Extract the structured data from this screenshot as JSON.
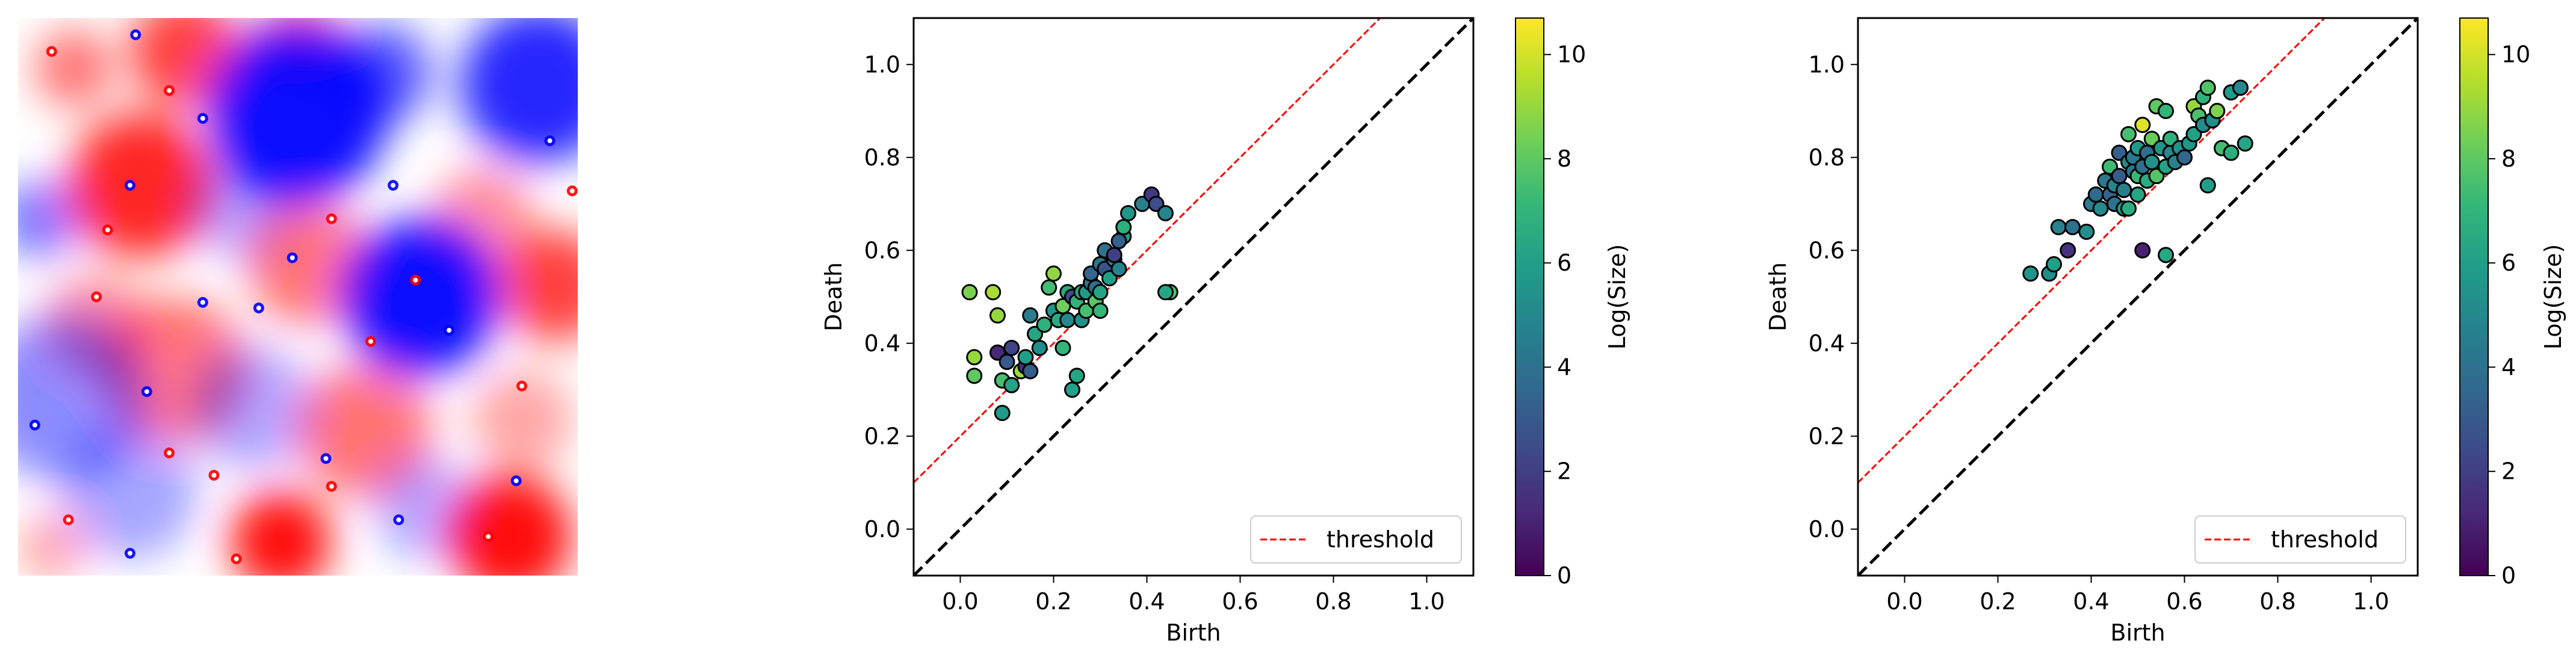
{
  "chart_data": [
    {
      "type": "heatmap",
      "title": "",
      "colormap": "bwr",
      "colors": {
        "negative": "#0000ff",
        "zero": "#ffffff",
        "positive": "#ff0000"
      },
      "blobs": [
        {
          "x": 0.1,
          "y": 0.09,
          "r": 0.07,
          "v": 0.55
        },
        {
          "x": 0.3,
          "y": 0.06,
          "r": 0.1,
          "v": 0.75
        },
        {
          "x": 0.5,
          "y": 0.04,
          "r": 0.08,
          "v": 0.55
        },
        {
          "x": 0.5,
          "y": 0.17,
          "r": 0.16,
          "v": -0.95
        },
        {
          "x": 0.65,
          "y": 0.1,
          "r": 0.09,
          "v": -0.65
        },
        {
          "x": 0.93,
          "y": 0.12,
          "r": 0.14,
          "v": -0.85
        },
        {
          "x": 0.04,
          "y": 0.36,
          "r": 0.07,
          "v": -0.55
        },
        {
          "x": 0.22,
          "y": 0.3,
          "r": 0.13,
          "v": 0.85
        },
        {
          "x": 0.14,
          "y": 0.55,
          "r": 0.09,
          "v": 0.45
        },
        {
          "x": 0.4,
          "y": 0.34,
          "r": 0.09,
          "v": -0.35
        },
        {
          "x": 0.52,
          "y": 0.44,
          "r": 0.11,
          "v": 0.55
        },
        {
          "x": 0.83,
          "y": 0.36,
          "r": 0.09,
          "v": 0.45
        },
        {
          "x": 0.72,
          "y": 0.5,
          "r": 0.14,
          "v": -0.95
        },
        {
          "x": 0.96,
          "y": 0.48,
          "r": 0.1,
          "v": 0.75
        },
        {
          "x": 0.28,
          "y": 0.63,
          "r": 0.13,
          "v": 0.55
        },
        {
          "x": 0.08,
          "y": 0.68,
          "r": 0.15,
          "v": -0.45
        },
        {
          "x": 0.42,
          "y": 0.7,
          "r": 0.11,
          "v": -0.35
        },
        {
          "x": 0.62,
          "y": 0.74,
          "r": 0.12,
          "v": 0.55
        },
        {
          "x": 0.9,
          "y": 0.72,
          "r": 0.09,
          "v": 0.35
        },
        {
          "x": 0.2,
          "y": 0.85,
          "r": 0.12,
          "v": -0.35
        },
        {
          "x": 0.47,
          "y": 0.94,
          "r": 0.09,
          "v": 0.95
        },
        {
          "x": 0.73,
          "y": 0.88,
          "r": 0.09,
          "v": -0.35
        },
        {
          "x": 0.88,
          "y": 0.93,
          "r": 0.11,
          "v": 0.95
        },
        {
          "x": 0.06,
          "y": 0.95,
          "r": 0.06,
          "v": 0.35
        }
      ],
      "specks": [
        {
          "x": 0.06,
          "y": 0.06,
          "v": 1
        },
        {
          "x": 0.21,
          "y": 0.03,
          "v": -1
        },
        {
          "x": 0.27,
          "y": 0.13,
          "v": 1
        },
        {
          "x": 0.33,
          "y": 0.18,
          "v": -1
        },
        {
          "x": 0.16,
          "y": 0.38,
          "v": 1
        },
        {
          "x": 0.2,
          "y": 0.3,
          "v": -1
        },
        {
          "x": 0.49,
          "y": 0.43,
          "v": -1
        },
        {
          "x": 0.56,
          "y": 0.36,
          "v": 1
        },
        {
          "x": 0.67,
          "y": 0.3,
          "v": -1
        },
        {
          "x": 0.71,
          "y": 0.47,
          "v": 1
        },
        {
          "x": 0.77,
          "y": 0.56,
          "v": -1
        },
        {
          "x": 0.95,
          "y": 0.22,
          "v": -1
        },
        {
          "x": 0.99,
          "y": 0.31,
          "v": 1
        },
        {
          "x": 0.14,
          "y": 0.5,
          "v": 1
        },
        {
          "x": 0.33,
          "y": 0.51,
          "v": -1
        },
        {
          "x": 0.43,
          "y": 0.52,
          "v": -1
        },
        {
          "x": 0.63,
          "y": 0.58,
          "v": 1
        },
        {
          "x": 0.9,
          "y": 0.66,
          "v": 1
        },
        {
          "x": 0.23,
          "y": 0.67,
          "v": -1
        },
        {
          "x": 0.27,
          "y": 0.78,
          "v": 1
        },
        {
          "x": 0.03,
          "y": 0.73,
          "v": -1
        },
        {
          "x": 0.35,
          "y": 0.82,
          "v": 1
        },
        {
          "x": 0.55,
          "y": 0.79,
          "v": -1
        },
        {
          "x": 0.56,
          "y": 0.84,
          "v": 1
        },
        {
          "x": 0.68,
          "y": 0.9,
          "v": -1
        },
        {
          "x": 0.84,
          "y": 0.93,
          "v": 1
        },
        {
          "x": 0.89,
          "y": 0.83,
          "v": -1
        },
        {
          "x": 0.09,
          "y": 0.9,
          "v": 1
        },
        {
          "x": 0.2,
          "y": 0.96,
          "v": -1
        },
        {
          "x": 0.39,
          "y": 0.97,
          "v": 1
        }
      ]
    },
    {
      "type": "scatter",
      "title": "",
      "xlabel": "Birth",
      "ylabel": "Death",
      "xlim": [
        -0.1,
        1.1
      ],
      "ylim": [
        -0.1,
        1.1
      ],
      "ticks": [
        0.0,
        0.2,
        0.4,
        0.6,
        0.8,
        1.0
      ],
      "tick_labels": [
        "0.0",
        "0.2",
        "0.4",
        "0.6",
        "0.8",
        "1.0"
      ],
      "diagonal": {
        "style": "dashed",
        "color": "#000000"
      },
      "threshold": {
        "offset": 0.2,
        "color": "#ff0000",
        "label": "threshold"
      },
      "legend_position": "lower right",
      "colorbar": {
        "label": "Log(Size)",
        "range": [
          0,
          10.7
        ],
        "ticks": [
          0,
          2,
          4,
          6,
          8,
          10
        ],
        "tick_labels": [
          "0",
          "2",
          "4",
          "6",
          "8",
          "10"
        ],
        "colormap": [
          "#440154",
          "#482878",
          "#3e4989",
          "#31688e",
          "#26828e",
          "#1f9e89",
          "#35b779",
          "#6ece58",
          "#b5de2b",
          "#fde725"
        ]
      },
      "points": [
        [
          0.02,
          0.51,
          8.5
        ],
        [
          0.07,
          0.51,
          9.3
        ],
        [
          0.03,
          0.37,
          9.0
        ],
        [
          0.03,
          0.33,
          8.0
        ],
        [
          0.08,
          0.46,
          9.0
        ],
        [
          0.08,
          0.38,
          1.2
        ],
        [
          0.1,
          0.36,
          3.0
        ],
        [
          0.11,
          0.39,
          2.2
        ],
        [
          0.09,
          0.32,
          7.5
        ],
        [
          0.11,
          0.31,
          6.2
        ],
        [
          0.09,
          0.25,
          5.8
        ],
        [
          0.13,
          0.34,
          9.1
        ],
        [
          0.14,
          0.35,
          1.5
        ],
        [
          0.15,
          0.34,
          3.2
        ],
        [
          0.14,
          0.37,
          6.0
        ],
        [
          0.15,
          0.46,
          4.5
        ],
        [
          0.16,
          0.42,
          6.3
        ],
        [
          0.17,
          0.39,
          5.2
        ],
        [
          0.18,
          0.44,
          6.8
        ],
        [
          0.19,
          0.52,
          7.4
        ],
        [
          0.2,
          0.55,
          8.9
        ],
        [
          0.2,
          0.47,
          5.5
        ],
        [
          0.21,
          0.45,
          6.5
        ],
        [
          0.22,
          0.48,
          8.3
        ],
        [
          0.23,
          0.51,
          6.4
        ],
        [
          0.23,
          0.45,
          5.0
        ],
        [
          0.24,
          0.5,
          2.5
        ],
        [
          0.25,
          0.49,
          6.9
        ],
        [
          0.26,
          0.51,
          6.6
        ],
        [
          0.22,
          0.39,
          7.0
        ],
        [
          0.25,
          0.33,
          6.3
        ],
        [
          0.24,
          0.3,
          6.1
        ],
        [
          0.26,
          0.45,
          5.4
        ],
        [
          0.27,
          0.47,
          7.5
        ],
        [
          0.27,
          0.51,
          5.8
        ],
        [
          0.28,
          0.53,
          4.2
        ],
        [
          0.28,
          0.55,
          3.5
        ],
        [
          0.29,
          0.52,
          4.0
        ],
        [
          0.29,
          0.49,
          7.9
        ],
        [
          0.3,
          0.57,
          4.3
        ],
        [
          0.3,
          0.51,
          6.2
        ],
        [
          0.31,
          0.56,
          2.8
        ],
        [
          0.31,
          0.6,
          4.1
        ],
        [
          0.32,
          0.54,
          6.0
        ],
        [
          0.33,
          0.58,
          5.5
        ],
        [
          0.33,
          0.59,
          2.0
        ],
        [
          0.34,
          0.56,
          4.8
        ],
        [
          0.35,
          0.63,
          5.9
        ],
        [
          0.34,
          0.62,
          3.3
        ],
        [
          0.35,
          0.65,
          6.7
        ],
        [
          0.3,
          0.47,
          7.1
        ],
        [
          0.36,
          0.68,
          5.6
        ],
        [
          0.39,
          0.7,
          4.6
        ],
        [
          0.41,
          0.72,
          1.8
        ],
        [
          0.42,
          0.7,
          2.6
        ],
        [
          0.44,
          0.68,
          4.9
        ],
        [
          0.45,
          0.51,
          7.6
        ],
        [
          0.44,
          0.51,
          6.3
        ]
      ]
    },
    {
      "type": "scatter",
      "title": "",
      "xlabel": "Birth",
      "ylabel": "Death",
      "xlim": [
        -0.1,
        1.1
      ],
      "ylim": [
        -0.1,
        1.1
      ],
      "ticks": [
        0.0,
        0.2,
        0.4,
        0.6,
        0.8,
        1.0
      ],
      "tick_labels": [
        "0.0",
        "0.2",
        "0.4",
        "0.6",
        "0.8",
        "1.0"
      ],
      "diagonal": {
        "style": "dashed",
        "color": "#000000"
      },
      "threshold": {
        "offset": 0.2,
        "color": "#ff0000",
        "label": "threshold"
      },
      "legend_position": "lower right",
      "colorbar": {
        "label": "Log(Size)",
        "range": [
          0,
          10.7
        ],
        "ticks": [
          0,
          2,
          4,
          6,
          8,
          10
        ],
        "tick_labels": [
          "0",
          "2",
          "4",
          "6",
          "8",
          "10"
        ],
        "colormap": [
          "#440154",
          "#482878",
          "#3e4989",
          "#31688e",
          "#26828e",
          "#1f9e89",
          "#35b779",
          "#6ece58",
          "#b5de2b",
          "#fde725"
        ]
      },
      "points": [
        [
          0.27,
          0.55,
          5.5
        ],
        [
          0.31,
          0.55,
          5.2
        ],
        [
          0.32,
          0.57,
          6.0
        ],
        [
          0.33,
          0.65,
          4.7
        ],
        [
          0.35,
          0.6,
          1.5
        ],
        [
          0.36,
          0.65,
          4.0
        ],
        [
          0.39,
          0.64,
          5.3
        ],
        [
          0.4,
          0.7,
          4.5
        ],
        [
          0.41,
          0.72,
          3.7
        ],
        [
          0.42,
          0.69,
          5.0
        ],
        [
          0.43,
          0.75,
          4.3
        ],
        [
          0.44,
          0.72,
          3.4
        ],
        [
          0.44,
          0.78,
          7.3
        ],
        [
          0.45,
          0.7,
          4.1
        ],
        [
          0.45,
          0.74,
          4.9
        ],
        [
          0.46,
          0.81,
          3.3
        ],
        [
          0.47,
          0.69,
          5.8
        ],
        [
          0.47,
          0.73,
          4.6
        ],
        [
          0.48,
          0.79,
          5.1
        ],
        [
          0.48,
          0.85,
          7.5
        ],
        [
          0.49,
          0.77,
          4.2
        ],
        [
          0.49,
          0.8,
          4.4
        ],
        [
          0.5,
          0.72,
          6.3
        ],
        [
          0.5,
          0.76,
          7.2
        ],
        [
          0.5,
          0.82,
          5.7
        ],
        [
          0.51,
          0.87,
          10.2
        ],
        [
          0.51,
          0.78,
          4.0
        ],
        [
          0.52,
          0.75,
          6.6
        ],
        [
          0.52,
          0.81,
          3.9
        ],
        [
          0.53,
          0.84,
          8.2
        ],
        [
          0.53,
          0.79,
          5.4
        ],
        [
          0.54,
          0.76,
          7.8
        ],
        [
          0.54,
          0.91,
          8.0
        ],
        [
          0.55,
          0.82,
          5.6
        ],
        [
          0.56,
          0.9,
          7.0
        ],
        [
          0.56,
          0.78,
          6.2
        ],
        [
          0.57,
          0.81,
          5.0
        ],
        [
          0.57,
          0.84,
          6.8
        ],
        [
          0.58,
          0.79,
          4.8
        ],
        [
          0.59,
          0.82,
          5.5
        ],
        [
          0.56,
          0.59,
          6.4
        ],
        [
          0.48,
          0.69,
          6.6
        ],
        [
          0.6,
          0.8,
          3.5
        ],
        [
          0.61,
          0.83,
          5.7
        ],
        [
          0.62,
          0.85,
          6.1
        ],
        [
          0.62,
          0.91,
          9.0
        ],
        [
          0.63,
          0.89,
          7.6
        ],
        [
          0.64,
          0.87,
          5.2
        ],
        [
          0.64,
          0.93,
          6.9
        ],
        [
          0.65,
          0.95,
          7.7
        ],
        [
          0.65,
          0.74,
          6.0
        ],
        [
          0.66,
          0.88,
          5.3
        ],
        [
          0.67,
          0.9,
          8.6
        ],
        [
          0.68,
          0.82,
          7.4
        ],
        [
          0.7,
          0.81,
          6.7
        ],
        [
          0.7,
          0.94,
          5.9
        ],
        [
          0.72,
          0.95,
          5.1
        ],
        [
          0.73,
          0.83,
          6.3
        ],
        [
          0.51,
          0.6,
          1.0
        ],
        [
          0.46,
          0.76,
          3.1
        ]
      ]
    }
  ]
}
